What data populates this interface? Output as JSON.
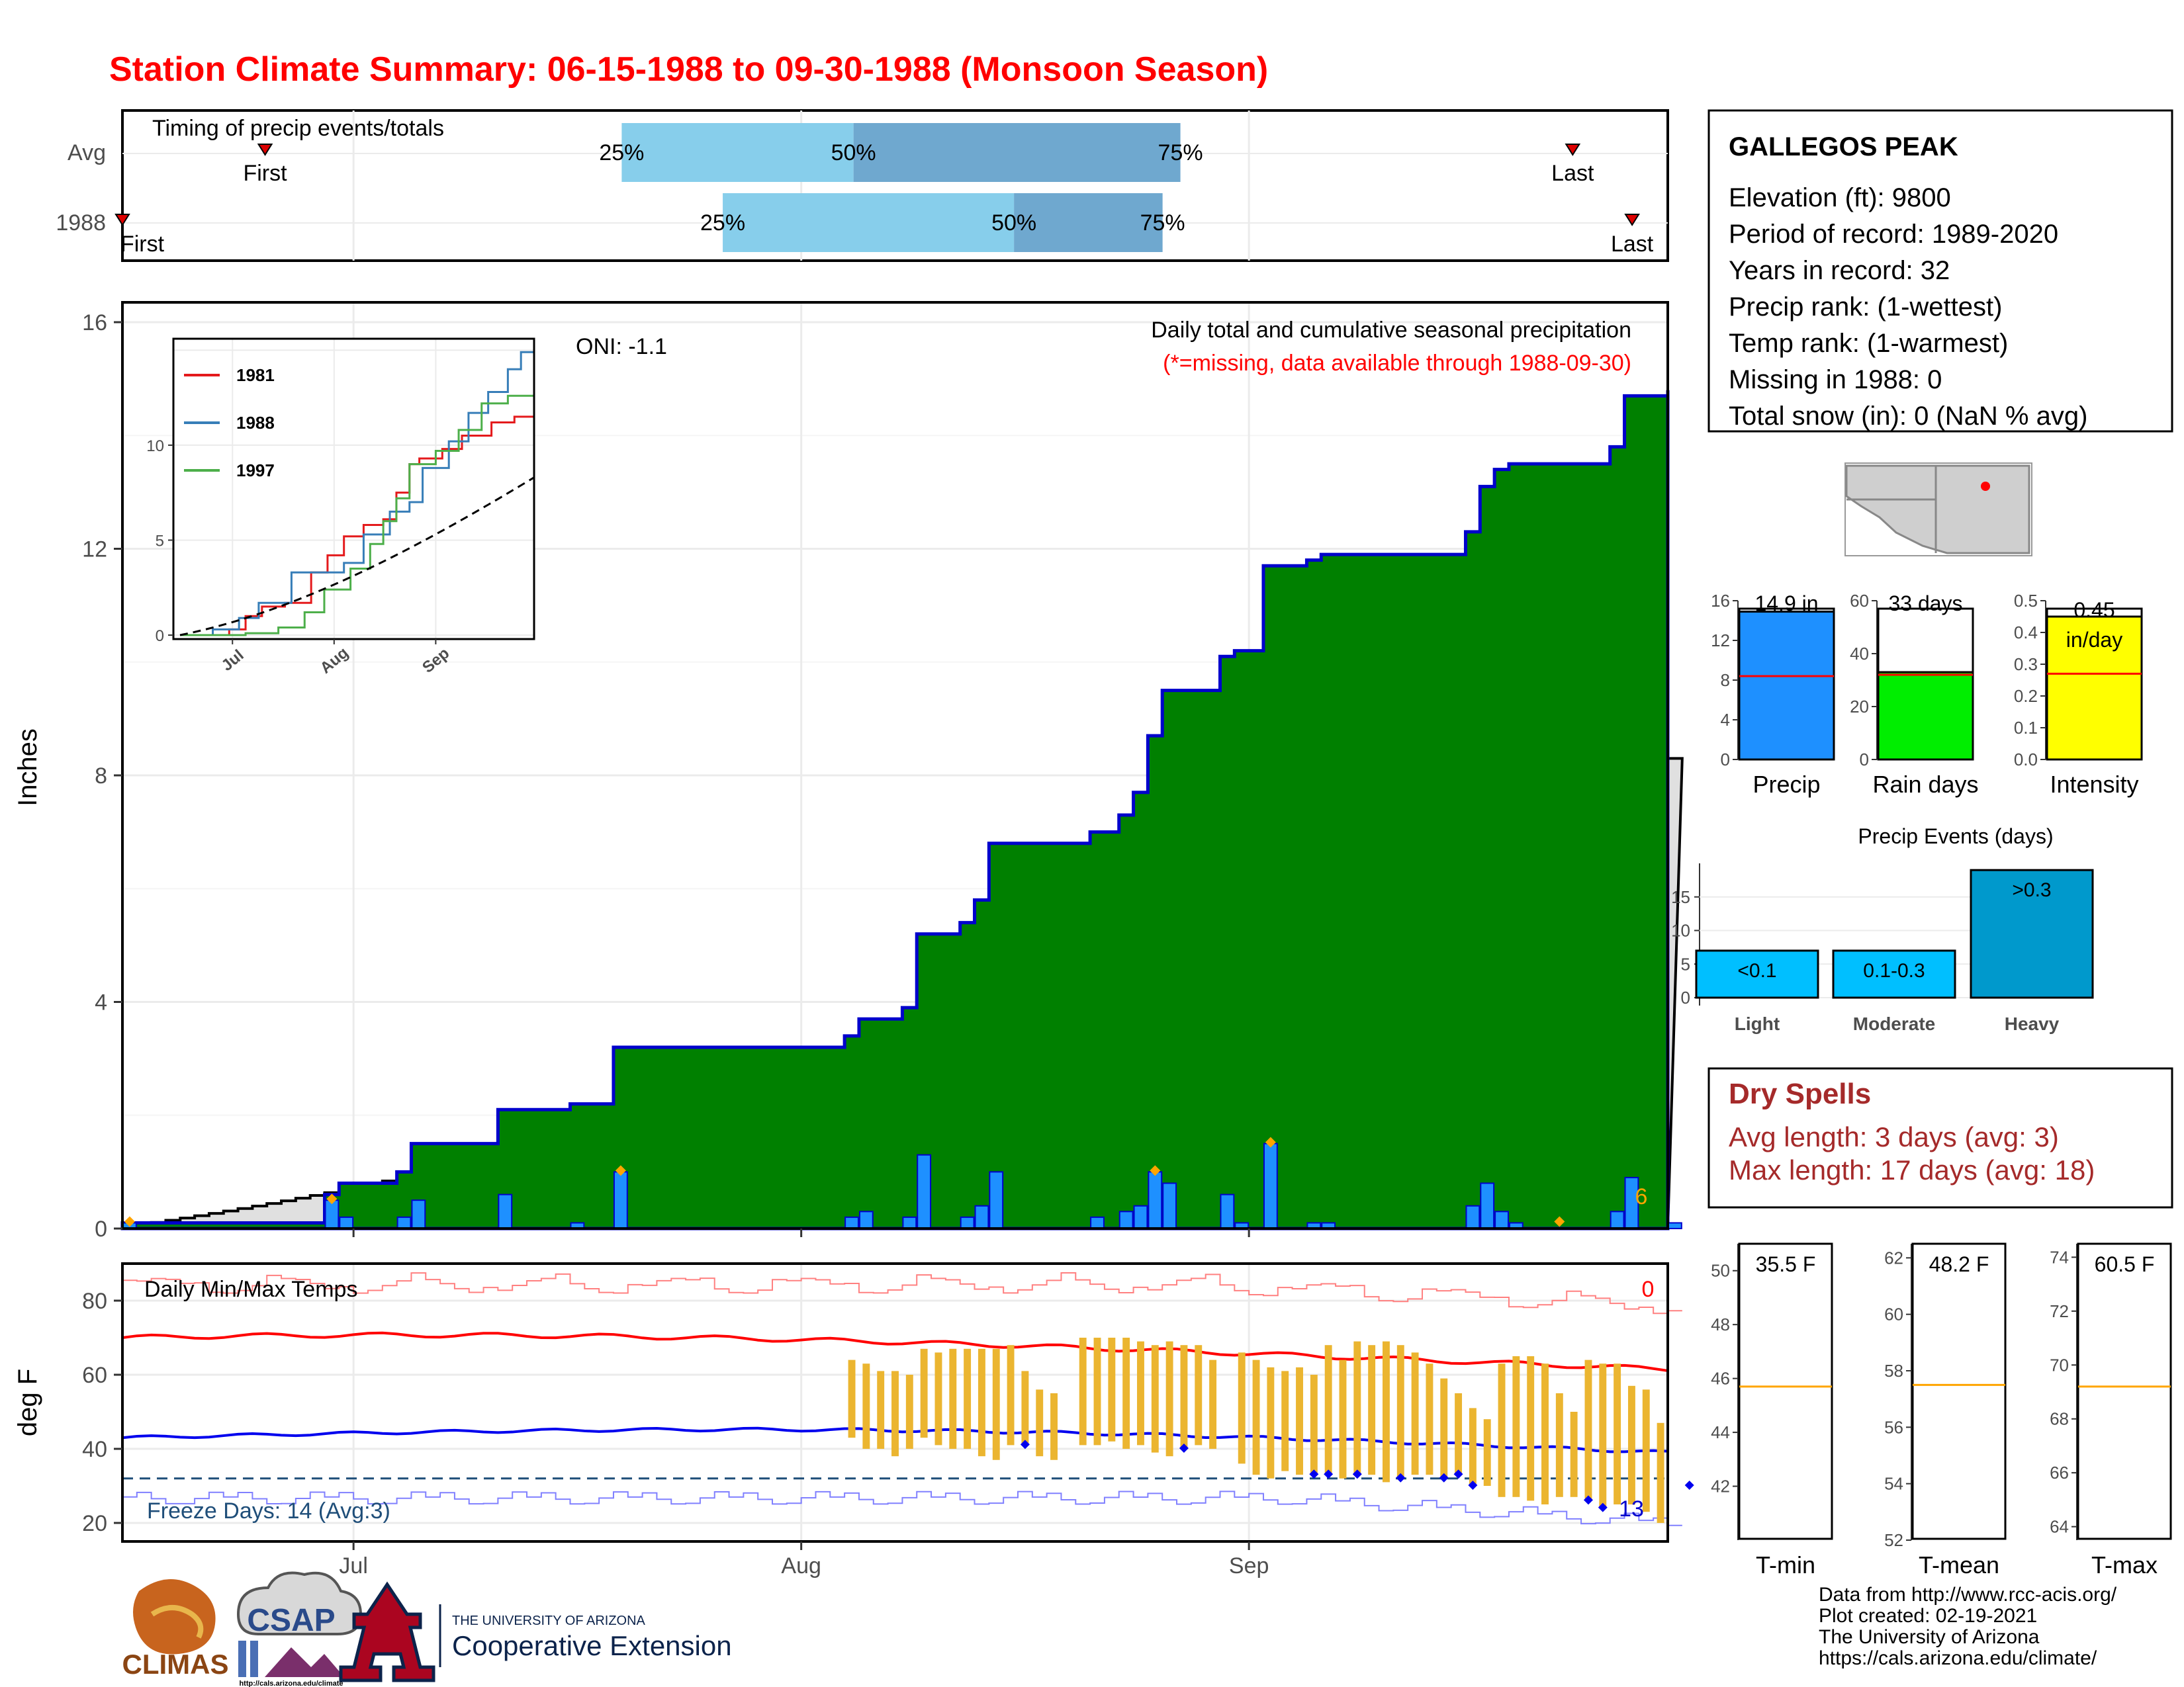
{
  "title": "Station Climate Summary: 06-15-1988 to 09-30-1988 (Monsoon Season)",
  "month_labels": [
    "Jul",
    "Aug",
    "Sep"
  ],
  "timing": {
    "title": "Timing of precip events/totals",
    "rows": [
      {
        "label": "Avg",
        "first": "First",
        "last": "Last",
        "p25": "25%",
        "p50": "50%",
        "p75": "75%",
        "first_day": 24,
        "last_day": 244,
        "p25_day": 84,
        "p50_day": 123,
        "p75_day": 178
      },
      {
        "label": "1988",
        "first": "First",
        "last": "Last",
        "p25": "25%",
        "p50": "50%",
        "p75": "75%",
        "first_day": 0,
        "last_day": 254,
        "p25_day": 101,
        "p50_day": 150,
        "p75_day": 175
      }
    ]
  },
  "precip_panel": {
    "ylabel": "Inches",
    "header": "Daily total and cumulative seasonal precipitation",
    "subheader": "(*=missing, data available through 1988-09-30)",
    "oni": "ONI: -1.1",
    "count_label": "6",
    "yticks": [
      "0",
      "4",
      "8",
      "12",
      "16"
    ]
  },
  "inset": {
    "legend": [
      "1981",
      "1988",
      "1997"
    ],
    "colors": [
      "#e41a1c",
      "#377eb8",
      "#4daf4a"
    ],
    "yticks": [
      "0",
      "5",
      "10"
    ],
    "xticks": [
      "Jul",
      "Aug",
      "Sep"
    ]
  },
  "temp_panel": {
    "ylabel": "deg F",
    "header": "Daily Min/Max Temps",
    "freeze": "Freeze Days: 14 (Avg:3)",
    "hot_count": "0",
    "cold_count": "13",
    "yticks": [
      "20",
      "40",
      "60",
      "80"
    ]
  },
  "station": {
    "name": "GALLEGOS PEAK",
    "lines": [
      "Elevation (ft): 9800",
      "Period of record: 1989-2020",
      "Years in record: 32",
      "Precip rank:  (1-wettest)",
      "Temp rank:  (1-warmest)",
      "Missing in 1988: 0",
      "Total snow (in): 0 (NaN % avg)"
    ]
  },
  "summary_bars": [
    {
      "label": "Precip",
      "value_label": "14.9 in",
      "value": 14.9,
      "avg": 8.4,
      "max": 16,
      "ticks": [
        "0",
        "4",
        "8",
        "12",
        "16"
      ],
      "color": "#1e90ff"
    },
    {
      "label": "Rain days",
      "value_label": "33 days",
      "value": 33,
      "avg": 32,
      "max": 60,
      "ticks": [
        "0",
        "20",
        "40",
        "60"
      ],
      "color": "#00ee00"
    },
    {
      "label": "Intensity",
      "value_label_1": "0.45",
      "value_label_2": "in/day",
      "value": 0.45,
      "avg": 0.27,
      "max": 0.5,
      "ticks": [
        "0.0",
        "0.1",
        "0.2",
        "0.3",
        "0.4",
        "0.5"
      ],
      "color": "#ffff00"
    }
  ],
  "events": {
    "title": "Precip Events (days)",
    "yticks": [
      "0",
      "5",
      "10",
      "15"
    ],
    "bars": [
      {
        "label": "Light",
        "inner": "<0.1",
        "value": 7
      },
      {
        "label": "Moderate",
        "inner": "0.1-0.3",
        "value": 7
      },
      {
        "label": "Heavy",
        "inner": ">0.3",
        "value": 19
      }
    ]
  },
  "dry_spells": {
    "title": "Dry Spells",
    "avg": "Avg length: 3 days (avg: 3)",
    "max": "Max length: 17 days (avg: 18)"
  },
  "temp_bars": [
    {
      "label": "T-min",
      "value_label": "35.5 F",
      "value": 35.5,
      "avg": 45.7,
      "min": 40,
      "max": 51,
      "ticks": [
        "42",
        "44",
        "46",
        "48",
        "50"
      ]
    },
    {
      "label": "T-mean",
      "value_label": "48.2 F",
      "value": 48.2,
      "avg": 57.5,
      "min": 52,
      "max": 62.5,
      "ticks": [
        "52",
        "54",
        "56",
        "58",
        "60",
        "62"
      ]
    },
    {
      "label": "T-max",
      "value_label": "60.5 F",
      "value": 60.5,
      "avg": 69.2,
      "min": 63.5,
      "max": 74.5,
      "ticks": [
        "64",
        "66",
        "68",
        "70",
        "72",
        "74"
      ]
    }
  ],
  "footer": [
    "Data from http://www.rcc-acis.org/",
    "Plot created: 02-19-2021",
    "The University of Arizona",
    "https://cals.arizona.edu/climate/"
  ],
  "logos": {
    "climas": "CLIMAS",
    "csap": "CSAP",
    "csap_url": "http://cals.arizona.edu/climate",
    "ua_top": "THE UNIVERSITY OF ARIZONA",
    "ua_bottom": "Cooperative Extension"
  },
  "chart_data": {
    "type": "bar",
    "x_range": [
      "1988-06-15",
      "1988-09-30"
    ],
    "ylabel": "Inches",
    "daily_precip": [
      {
        "date": "1988-06-15",
        "value": 0.1
      },
      {
        "date": "1988-06-29",
        "value": 0.5
      },
      {
        "date": "1988-06-30",
        "value": 0.2
      },
      {
        "date": "1988-07-04",
        "value": 0.2
      },
      {
        "date": "1988-07-05",
        "value": 0.5
      },
      {
        "date": "1988-07-11",
        "value": 0.6
      },
      {
        "date": "1988-07-16",
        "value": 0.1
      },
      {
        "date": "1988-07-19",
        "value": 1.0
      },
      {
        "date": "1988-08-04",
        "value": 0.2
      },
      {
        "date": "1988-08-05",
        "value": 0.3
      },
      {
        "date": "1988-08-08",
        "value": 0.2
      },
      {
        "date": "1988-08-09",
        "value": 1.3
      },
      {
        "date": "1988-08-12",
        "value": 0.2
      },
      {
        "date": "1988-08-13",
        "value": 0.4
      },
      {
        "date": "1988-08-14",
        "value": 1.0
      },
      {
        "date": "1988-08-21",
        "value": 0.2
      },
      {
        "date": "1988-08-23",
        "value": 0.3
      },
      {
        "date": "1988-08-24",
        "value": 0.4
      },
      {
        "date": "1988-08-25",
        "value": 1.0
      },
      {
        "date": "1988-08-26",
        "value": 0.8
      },
      {
        "date": "1988-08-30",
        "value": 0.6
      },
      {
        "date": "1988-08-31",
        "value": 0.1
      },
      {
        "date": "1988-09-02",
        "value": 1.5
      },
      {
        "date": "1988-09-05",
        "value": 0.1
      },
      {
        "date": "1988-09-06",
        "value": 0.1
      },
      {
        "date": "1988-09-16",
        "value": 0.4
      },
      {
        "date": "1988-09-17",
        "value": 0.8
      },
      {
        "date": "1988-09-18",
        "value": 0.3
      },
      {
        "date": "1988-09-19",
        "value": 0.1
      },
      {
        "date": "1988-09-26",
        "value": 0.3
      },
      {
        "date": "1988-09-27",
        "value": 0.9
      },
      {
        "date": "1988-09-30",
        "value": 0.1
      }
    ],
    "cumulative_final": 14.9,
    "avg_cumulative_final": 8.3,
    "temp_avg_max_start": 70,
    "temp_avg_max_end": 61.5,
    "temp_avg_min_start": 43,
    "temp_avg_min_end": 39,
    "freeze_line": 32
  }
}
